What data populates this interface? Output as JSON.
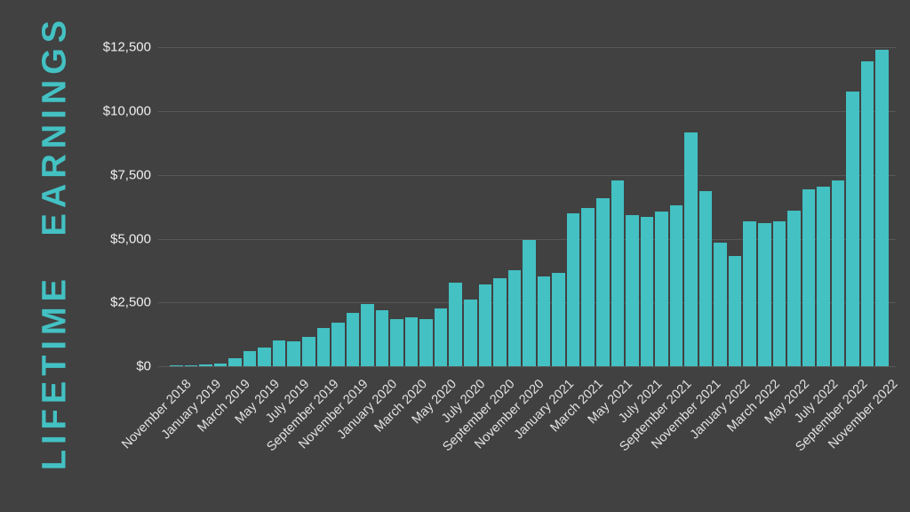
{
  "title": "LIFETIME EARNINGS",
  "colors": {
    "background": "#414141",
    "bar": "#43c1c3",
    "title_text": "#43c1c3",
    "gridline": "#585858",
    "axis_text": "#f0f0f0"
  },
  "y_axis": {
    "ticks": [
      {
        "label": "$0",
        "value": 0
      },
      {
        "label": "$2,500",
        "value": 2500
      },
      {
        "label": "$5,000",
        "value": 5000
      },
      {
        "label": "$7,500",
        "value": 7500
      },
      {
        "label": "$10,000",
        "value": 10000
      },
      {
        "label": "$12,500",
        "value": 12500
      }
    ]
  },
  "chart_data": {
    "type": "bar",
    "title": "LIFETIME EARNINGS",
    "xlabel": "",
    "ylabel": "",
    "ylim": [
      0,
      12500
    ],
    "grid": true,
    "legend": "none",
    "x_tick_label_interval": 2,
    "x_tick_labels_shown": [
      "November 2018",
      "January 2019",
      "March 2019",
      "May 2019",
      "July 2019",
      "September 2019",
      "November 2019",
      "January 2020",
      "March 2020",
      "May 2020",
      "July 2020",
      "September 2020",
      "November 2020",
      "January 2021",
      "March 2021",
      "May 2021",
      "July 2021",
      "September 2021",
      "November 2021",
      "January 2022",
      "March 2022",
      "May 2022",
      "July 2022",
      "September 2022",
      "November 2022"
    ],
    "categories": [
      "November 2018",
      "December 2018",
      "January 2019",
      "February 2019",
      "March 2019",
      "April 2019",
      "May 2019",
      "June 2019",
      "July 2019",
      "August 2019",
      "September 2019",
      "October 2019",
      "November 2019",
      "December 2019",
      "January 2020",
      "February 2020",
      "March 2020",
      "April 2020",
      "May 2020",
      "June 2020",
      "July 2020",
      "August 2020",
      "September 2020",
      "October 2020",
      "November 2020",
      "December 2020",
      "January 2021",
      "February 2021",
      "March 2021",
      "April 2021",
      "May 2021",
      "June 2021",
      "July 2021",
      "August 2021",
      "September 2021",
      "October 2021",
      "November 2021",
      "December 2021",
      "January 2022",
      "February 2022",
      "March 2022",
      "April 2022",
      "May 2022",
      "June 2022",
      "July 2022",
      "August 2022",
      "September 2022",
      "October 2022",
      "November 2022"
    ],
    "values": [
      25,
      40,
      60,
      120,
      330,
      580,
      720,
      1000,
      970,
      1140,
      1490,
      1720,
      2100,
      2450,
      2200,
      1840,
      1930,
      1840,
      2280,
      3270,
      2630,
      3210,
      3450,
      3760,
      4950,
      3530,
      3670,
      6010,
      6200,
      6590,
      7300,
      5930,
      5840,
      6080,
      6300,
      9150,
      6860,
      4830,
      4310,
      5680,
      5620,
      5680,
      6100,
      6950,
      7030,
      7290,
      10770,
      11970,
      12400
    ]
  }
}
